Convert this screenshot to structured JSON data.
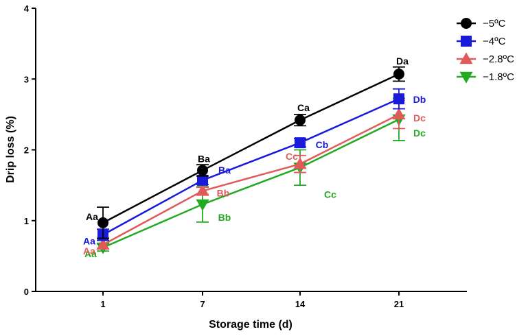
{
  "chart_data": {
    "type": "line",
    "xlabel": "Storage time (d)",
    "ylabel": "Drip loss (%)",
    "categories": [
      "1",
      "7",
      "14",
      "21"
    ],
    "ylim": [
      0,
      4
    ],
    "yticks": [
      "0",
      "1",
      "2",
      "3",
      "4"
    ],
    "legend_position": "top-right",
    "series": [
      {
        "name": "−5ºC",
        "color": "#000000",
        "marker": "circle",
        "values": [
          0.97,
          1.71,
          2.42,
          3.07
        ],
        "errors": [
          0.22,
          0.08,
          0.08,
          0.1
        ],
        "labels": [
          "Aa",
          "Ba",
          "Ca",
          "Da"
        ]
      },
      {
        "name": "−4ºC",
        "color": "#1a1adb",
        "marker": "square",
        "values": [
          0.8,
          1.57,
          2.1,
          2.72
        ],
        "errors": [
          0.08,
          0.06,
          0.06,
          0.14
        ],
        "labels": [
          "Aa",
          "Ba",
          "Cb",
          "Db"
        ]
      },
      {
        "name": "−2.8ºC",
        "color": "#e05a5a",
        "marker": "triangle-up",
        "values": [
          0.66,
          1.42,
          1.8,
          2.5
        ],
        "errors": [
          0.06,
          0.05,
          0.12,
          0.2
        ],
        "labels": [
          "Aa",
          "Bb",
          "Cc",
          "Dc"
        ]
      },
      {
        "name": "−1.8ºC",
        "color": "#22aa22",
        "marker": "triangle-down",
        "values": [
          0.62,
          1.23,
          1.75,
          2.43
        ],
        "errors": [
          0.05,
          0.25,
          0.25,
          0.3
        ],
        "labels": [
          "Aa",
          "Bb",
          "Cc",
          "Dc"
        ]
      }
    ]
  }
}
